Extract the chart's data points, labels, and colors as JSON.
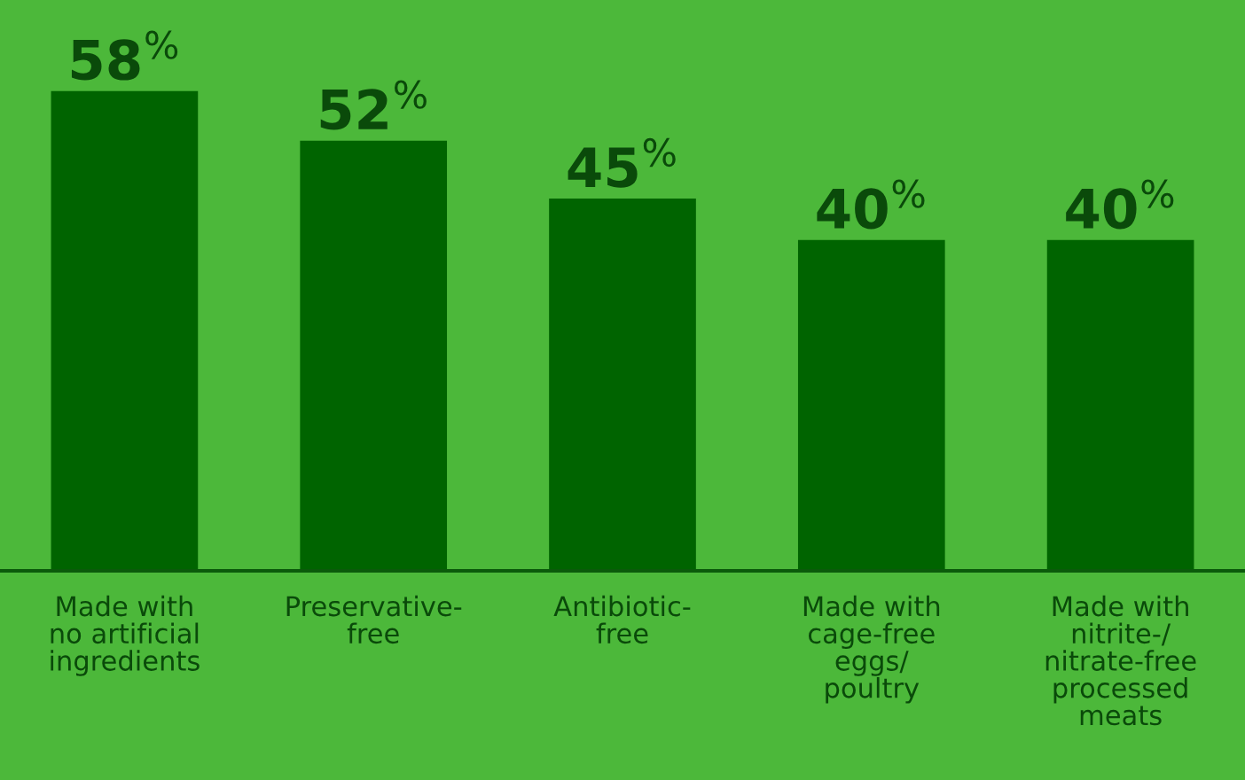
{
  "chart_data": {
    "type": "bar",
    "categories": [
      "Made with\nno artificial\ningredients",
      "Preservative-\nfree",
      "Antibiotic-\nfree",
      "Made with\ncage-free\neggs/\npoultry",
      "Made with\nnitrite-/\nnitrate-free\nprocessed\nmeats"
    ],
    "values": [
      58,
      52,
      45,
      40,
      40
    ],
    "color": "#006400",
    "value_labels": [
      "58$^{%}$",
      "52$^{%}$",
      "45$^{%}$",
      "40$^{%}$",
      "40$^{%}$"
    ],
    "grid": false,
    "legend": false
  }
}
